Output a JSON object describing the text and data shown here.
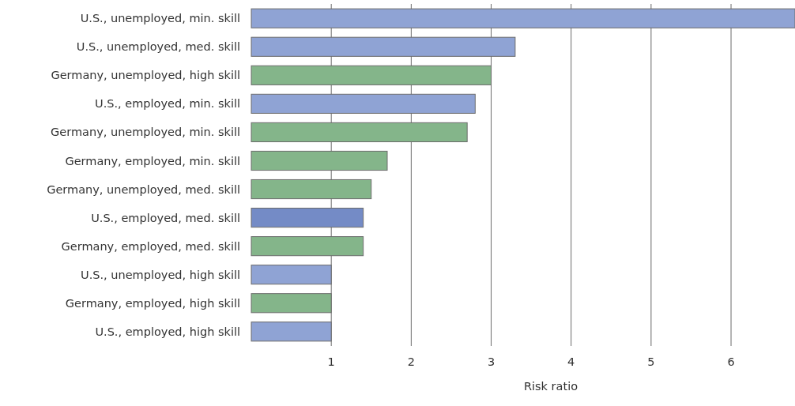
{
  "chart_data": {
    "type": "bar",
    "orientation": "horizontal",
    "xlabel": "Risk ratio",
    "categories": [
      "U.S., unemployed, min. skill",
      "U.S., unemployed, med. skill",
      "Germany, unemployed, high skill",
      "U.S., employed, min. skill",
      "Germany, unemployed, min. skill",
      "Germany, employed, min. skill",
      "Germany, unemployed, med. skill",
      "U.S., employed, med. skill",
      "Germany, employed, med. skill",
      "U.S., unemployed, high skill",
      "Germany, employed, high skill",
      "U.S., employed, high skill"
    ],
    "values": [
      6.8,
      3.3,
      3.0,
      2.8,
      2.7,
      1.7,
      1.5,
      1.4,
      1.4,
      1.0,
      1.0,
      1.0
    ],
    "colors": [
      "#8fa3d4",
      "#8fa3d4",
      "#84b58a",
      "#8fa3d4",
      "#84b58a",
      "#84b58a",
      "#84b58a",
      "#748bc6",
      "#84b58a",
      "#8fa3d4",
      "#84b58a",
      "#8fa3d4"
    ],
    "xlim": [
      0,
      6.8
    ],
    "xticks": [
      1,
      2,
      3,
      4,
      5,
      6
    ],
    "grid": "x"
  }
}
